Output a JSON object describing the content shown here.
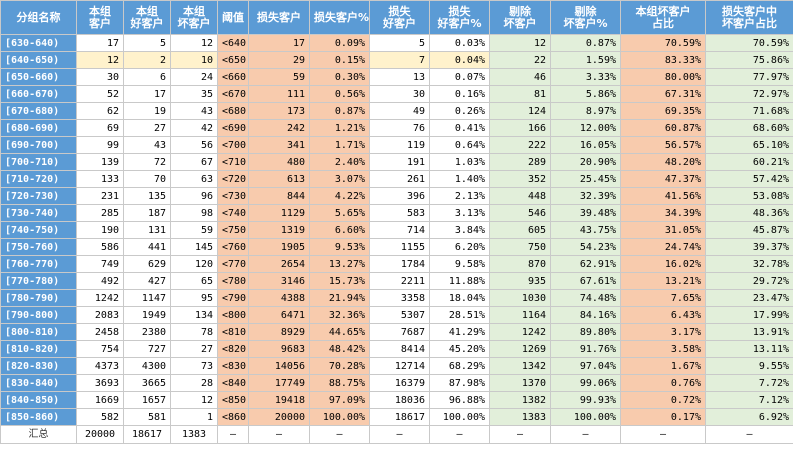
{
  "headers": [
    "分组名称",
    "本组\n客户",
    "本组\n好客户",
    "本组\n坏客户",
    "阈值",
    "损失客户",
    "损失客户%",
    "损失\n好客户",
    "损失\n好客户%",
    "剔除\n坏客户",
    "剔除\n坏客户%",
    "本组坏客户\n占比",
    "损失客户中\n坏客户占比"
  ],
  "rows": [
    [
      "[630-640)",
      "17",
      "5",
      "12",
      "<640",
      "17",
      "0.09%",
      "5",
      "0.03%",
      "12",
      "0.87%",
      "70.59%",
      "70.59%"
    ],
    [
      "[640-650)",
      "12",
      "2",
      "10",
      "<650",
      "29",
      "0.15%",
      "7",
      "0.04%",
      "22",
      "1.59%",
      "83.33%",
      "75.86%"
    ],
    [
      "[650-660)",
      "30",
      "6",
      "24",
      "<660",
      "59",
      "0.30%",
      "13",
      "0.07%",
      "46",
      "3.33%",
      "80.00%",
      "77.97%"
    ],
    [
      "[660-670)",
      "52",
      "17",
      "35",
      "<670",
      "111",
      "0.56%",
      "30",
      "0.16%",
      "81",
      "5.86%",
      "67.31%",
      "72.97%"
    ],
    [
      "[670-680)",
      "62",
      "19",
      "43",
      "<680",
      "173",
      "0.87%",
      "49",
      "0.26%",
      "124",
      "8.97%",
      "69.35%",
      "71.68%"
    ],
    [
      "[680-690)",
      "69",
      "27",
      "42",
      "<690",
      "242",
      "1.21%",
      "76",
      "0.41%",
      "166",
      "12.00%",
      "60.87%",
      "68.60%"
    ],
    [
      "[690-700)",
      "99",
      "43",
      "56",
      "<700",
      "341",
      "1.71%",
      "119",
      "0.64%",
      "222",
      "16.05%",
      "56.57%",
      "65.10%"
    ],
    [
      "[700-710)",
      "139",
      "72",
      "67",
      "<710",
      "480",
      "2.40%",
      "191",
      "1.03%",
      "289",
      "20.90%",
      "48.20%",
      "60.21%"
    ],
    [
      "[710-720)",
      "133",
      "70",
      "63",
      "<720",
      "613",
      "3.07%",
      "261",
      "1.40%",
      "352",
      "25.45%",
      "47.37%",
      "57.42%"
    ],
    [
      "[720-730)",
      "231",
      "135",
      "96",
      "<730",
      "844",
      "4.22%",
      "396",
      "2.13%",
      "448",
      "32.39%",
      "41.56%",
      "53.08%"
    ],
    [
      "[730-740)",
      "285",
      "187",
      "98",
      "<740",
      "1129",
      "5.65%",
      "583",
      "3.13%",
      "546",
      "39.48%",
      "34.39%",
      "48.36%"
    ],
    [
      "[740-750)",
      "190",
      "131",
      "59",
      "<750",
      "1319",
      "6.60%",
      "714",
      "3.84%",
      "605",
      "43.75%",
      "31.05%",
      "45.87%"
    ],
    [
      "[750-760)",
      "586",
      "441",
      "145",
      "<760",
      "1905",
      "9.53%",
      "1155",
      "6.20%",
      "750",
      "54.23%",
      "24.74%",
      "39.37%"
    ],
    [
      "[760-770)",
      "749",
      "629",
      "120",
      "<770",
      "2654",
      "13.27%",
      "1784",
      "9.58%",
      "870",
      "62.91%",
      "16.02%",
      "32.78%"
    ],
    [
      "[770-780)",
      "492",
      "427",
      "65",
      "<780",
      "3146",
      "15.73%",
      "2211",
      "11.88%",
      "935",
      "67.61%",
      "13.21%",
      "29.72%"
    ],
    [
      "[780-790)",
      "1242",
      "1147",
      "95",
      "<790",
      "4388",
      "21.94%",
      "3358",
      "18.04%",
      "1030",
      "74.48%",
      "7.65%",
      "23.47%"
    ],
    [
      "[790-800)",
      "2083",
      "1949",
      "134",
      "<800",
      "6471",
      "32.36%",
      "5307",
      "28.51%",
      "1164",
      "84.16%",
      "6.43%",
      "17.99%"
    ],
    [
      "[800-810)",
      "2458",
      "2380",
      "78",
      "<810",
      "8929",
      "44.65%",
      "7687",
      "41.29%",
      "1242",
      "89.80%",
      "3.17%",
      "13.91%"
    ],
    [
      "[810-820)",
      "754",
      "727",
      "27",
      "<820",
      "9683",
      "48.42%",
      "8414",
      "45.20%",
      "1269",
      "91.76%",
      "3.58%",
      "13.11%"
    ],
    [
      "[820-830)",
      "4373",
      "4300",
      "73",
      "<830",
      "14056",
      "70.28%",
      "12714",
      "68.29%",
      "1342",
      "97.04%",
      "1.67%",
      "9.55%"
    ],
    [
      "[830-840)",
      "3693",
      "3665",
      "28",
      "<840",
      "17749",
      "88.75%",
      "16379",
      "87.98%",
      "1370",
      "99.06%",
      "0.76%",
      "7.72%"
    ],
    [
      "[840-850)",
      "1669",
      "1657",
      "12",
      "<850",
      "19418",
      "97.09%",
      "18036",
      "96.88%",
      "1382",
      "99.93%",
      "0.72%",
      "7.12%"
    ],
    [
      "[850-860)",
      "582",
      "581",
      "1",
      "<860",
      "20000",
      "100.00%",
      "18617",
      "100.00%",
      "1383",
      "100.00%",
      "0.17%",
      "6.92%"
    ]
  ],
  "total": [
    "汇总",
    "20000",
    "18617",
    "1383",
    "–",
    "–",
    "–",
    "–",
    "–",
    "–",
    "–",
    "–",
    "–"
  ],
  "highlighted_row": 1,
  "colors": {
    "header_blue": "#5b9bd5",
    "threshold_orange": "#f8cbad",
    "removed_green": "#e2efda",
    "highlight_yellow": "#fff2cc"
  }
}
